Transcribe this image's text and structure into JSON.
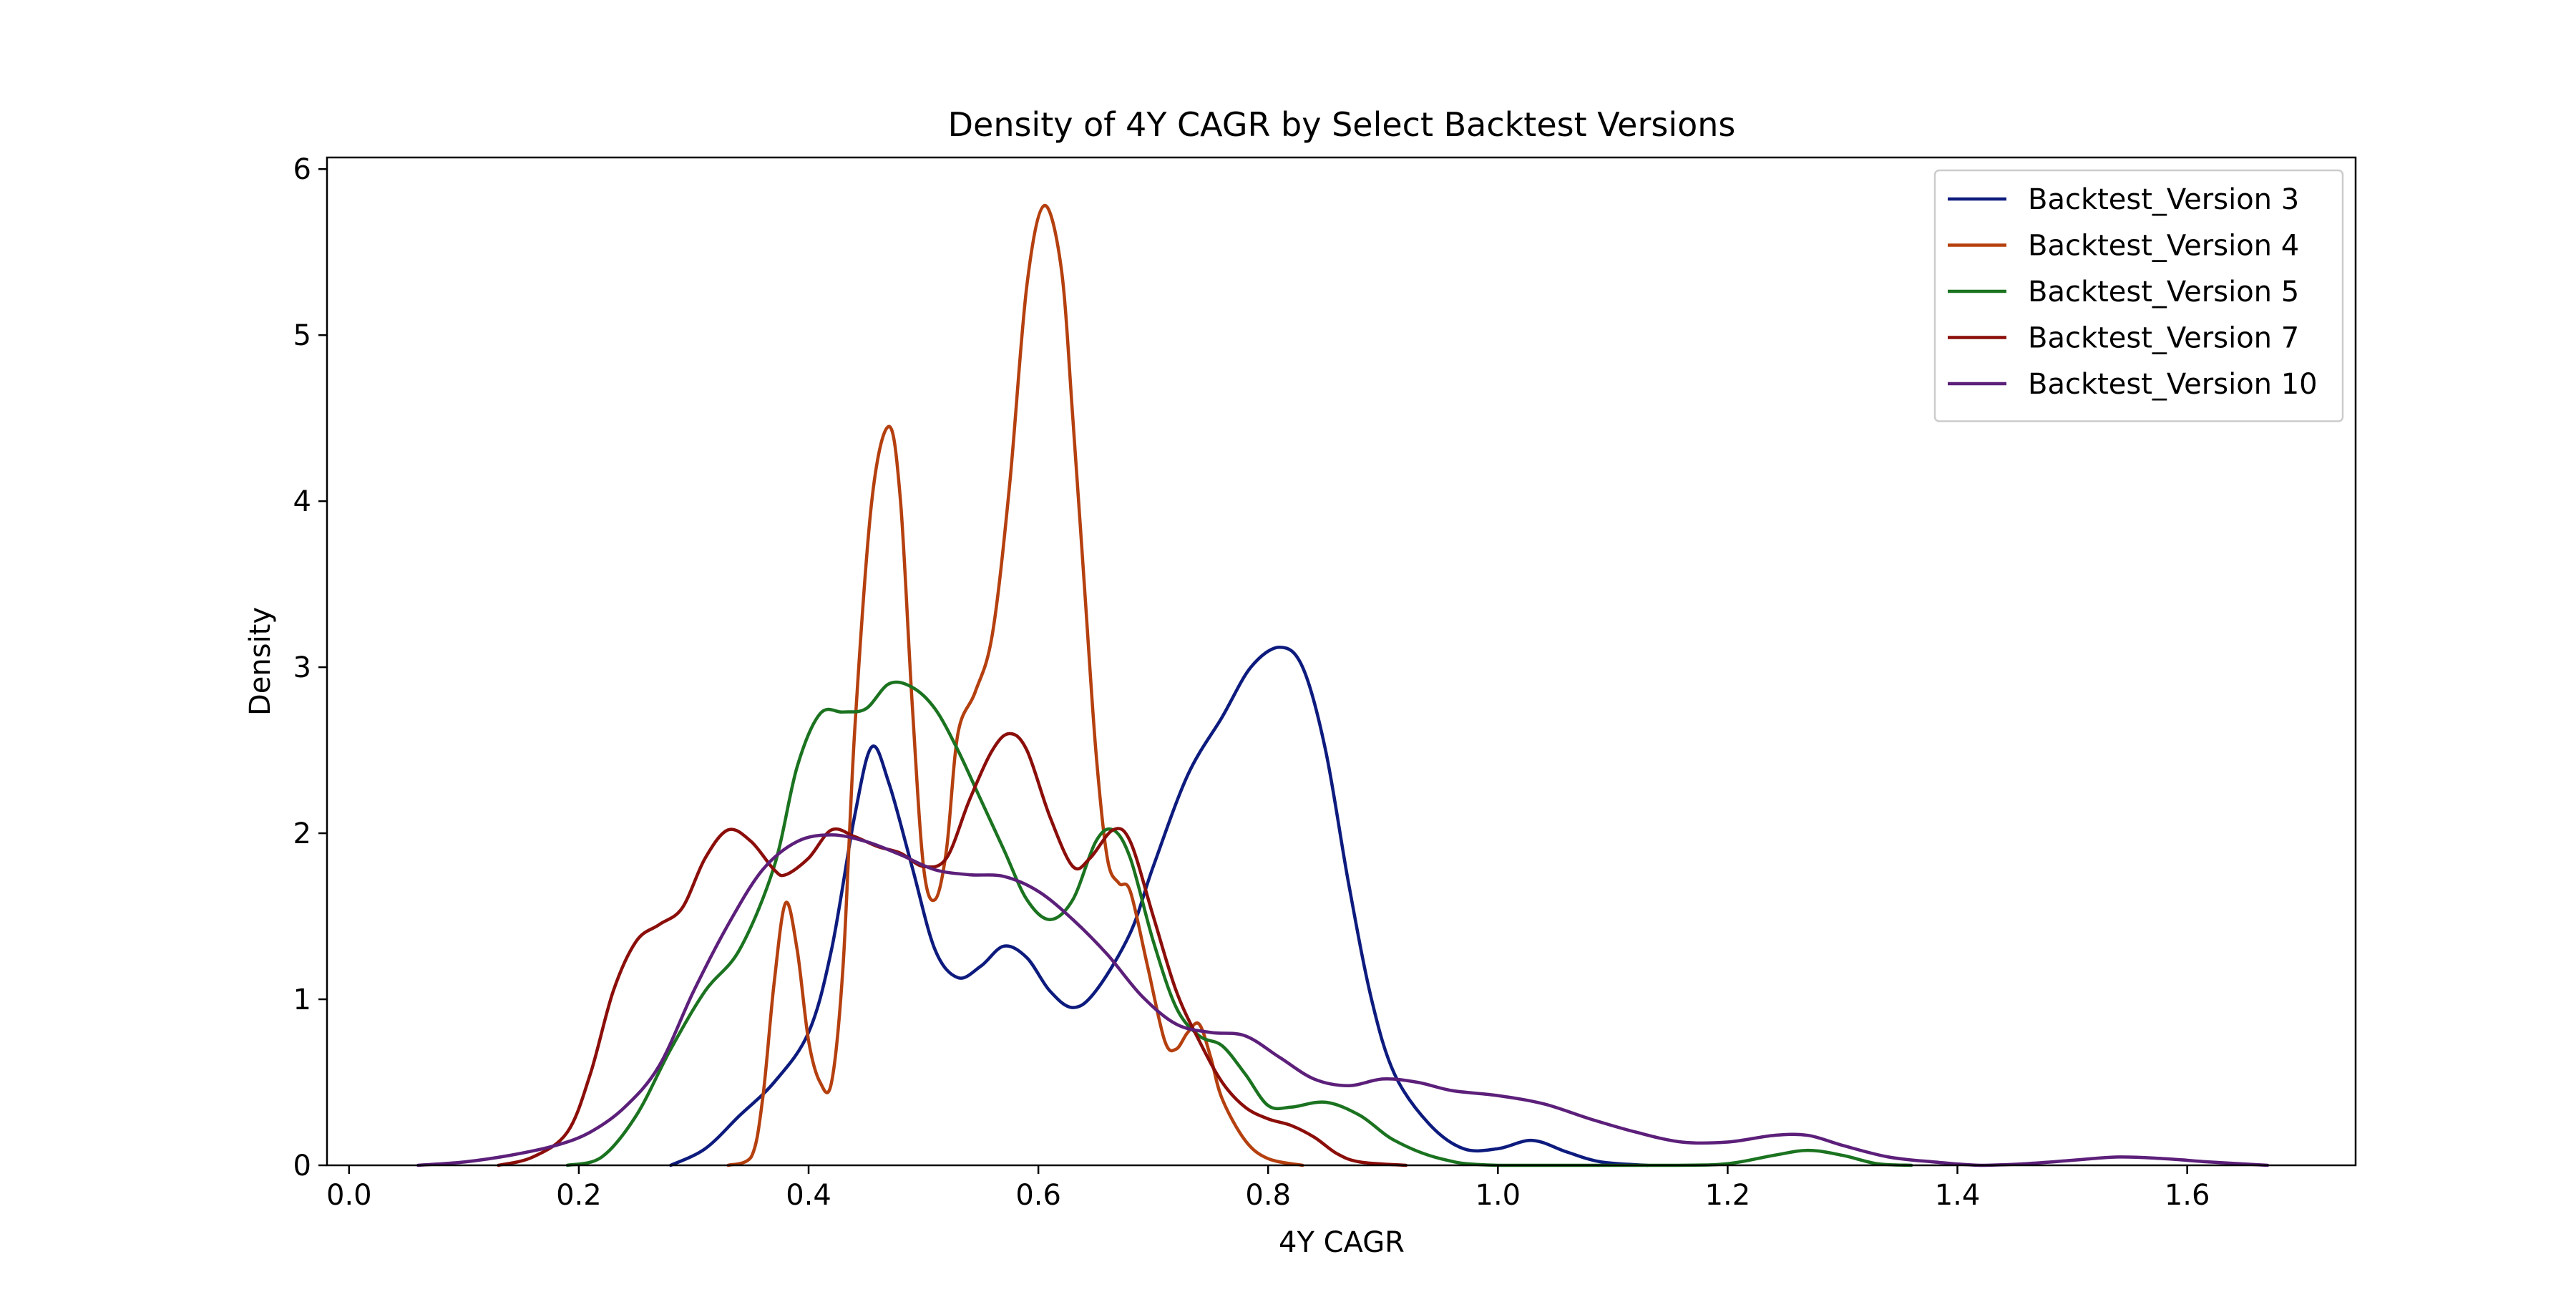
{
  "chart_data": {
    "type": "line",
    "title": "Density of 4Y CAGR by Select Backtest Versions",
    "xlabel": "4Y CAGR",
    "ylabel": "Density",
    "xlim": [
      -0.0192,
      1.7466
    ],
    "ylim": [
      0,
      6.07
    ],
    "xticks": [
      0.0,
      0.2,
      0.4,
      0.6,
      0.8,
      1.0,
      1.2,
      1.4,
      1.6
    ],
    "yticks": [
      0,
      1,
      2,
      3,
      4,
      5,
      6
    ],
    "xtick_labels": [
      "0.0",
      "0.2",
      "0.4",
      "0.6",
      "0.8",
      "1.0",
      "1.2",
      "1.4",
      "1.6"
    ],
    "ytick_labels": [
      "0",
      "1",
      "2",
      "3",
      "4",
      "5",
      "6"
    ],
    "grid": false,
    "legend_position": "top-right",
    "series": [
      {
        "name": "Backtest_Version 3",
        "color": "#0d1b7e",
        "points": [
          [
            0.28,
            0
          ],
          [
            0.31,
            0.1
          ],
          [
            0.34,
            0.3
          ],
          [
            0.37,
            0.5
          ],
          [
            0.4,
            0.8
          ],
          [
            0.42,
            1.3
          ],
          [
            0.44,
            2.1
          ],
          [
            0.455,
            2.52
          ],
          [
            0.47,
            2.3
          ],
          [
            0.49,
            1.8
          ],
          [
            0.51,
            1.3
          ],
          [
            0.53,
            1.13
          ],
          [
            0.55,
            1.2
          ],
          [
            0.57,
            1.32
          ],
          [
            0.59,
            1.25
          ],
          [
            0.61,
            1.05
          ],
          [
            0.63,
            0.95
          ],
          [
            0.65,
            1.05
          ],
          [
            0.68,
            1.4
          ],
          [
            0.7,
            1.8
          ],
          [
            0.73,
            2.35
          ],
          [
            0.76,
            2.7
          ],
          [
            0.785,
            3.0
          ],
          [
            0.81,
            3.12
          ],
          [
            0.83,
            3.0
          ],
          [
            0.85,
            2.5
          ],
          [
            0.87,
            1.7
          ],
          [
            0.89,
            1.0
          ],
          [
            0.91,
            0.55
          ],
          [
            0.94,
            0.25
          ],
          [
            0.97,
            0.1
          ],
          [
            1.0,
            0.1
          ],
          [
            1.03,
            0.15
          ],
          [
            1.06,
            0.08
          ],
          [
            1.09,
            0.02
          ],
          [
            1.13,
            0
          ]
        ]
      },
      {
        "name": "Backtest_Version 4",
        "color": "#b5400f",
        "points": [
          [
            0.33,
            0
          ],
          [
            0.35,
            0.05
          ],
          [
            0.36,
            0.4
          ],
          [
            0.37,
            1.1
          ],
          [
            0.38,
            1.58
          ],
          [
            0.39,
            1.3
          ],
          [
            0.4,
            0.75
          ],
          [
            0.41,
            0.5
          ],
          [
            0.42,
            0.5
          ],
          [
            0.43,
            1.2
          ],
          [
            0.44,
            2.6
          ],
          [
            0.455,
            4.0
          ],
          [
            0.47,
            4.45
          ],
          [
            0.48,
            4.0
          ],
          [
            0.49,
            2.8
          ],
          [
            0.5,
            1.8
          ],
          [
            0.51,
            1.6
          ],
          [
            0.52,
            1.9
          ],
          [
            0.53,
            2.6
          ],
          [
            0.545,
            2.85
          ],
          [
            0.56,
            3.2
          ],
          [
            0.575,
            4.1
          ],
          [
            0.59,
            5.3
          ],
          [
            0.605,
            5.78
          ],
          [
            0.62,
            5.4
          ],
          [
            0.63,
            4.5
          ],
          [
            0.64,
            3.5
          ],
          [
            0.65,
            2.5
          ],
          [
            0.66,
            1.85
          ],
          [
            0.67,
            1.7
          ],
          [
            0.68,
            1.65
          ],
          [
            0.695,
            1.2
          ],
          [
            0.71,
            0.75
          ],
          [
            0.72,
            0.7
          ],
          [
            0.73,
            0.8
          ],
          [
            0.74,
            0.85
          ],
          [
            0.75,
            0.65
          ],
          [
            0.76,
            0.4
          ],
          [
            0.78,
            0.15
          ],
          [
            0.8,
            0.04
          ],
          [
            0.83,
            0
          ]
        ]
      },
      {
        "name": "Backtest_Version 5",
        "color": "#1b7320",
        "points": [
          [
            0.19,
            0
          ],
          [
            0.22,
            0.05
          ],
          [
            0.25,
            0.3
          ],
          [
            0.28,
            0.7
          ],
          [
            0.31,
            1.05
          ],
          [
            0.34,
            1.3
          ],
          [
            0.37,
            1.8
          ],
          [
            0.39,
            2.4
          ],
          [
            0.41,
            2.72
          ],
          [
            0.43,
            2.73
          ],
          [
            0.45,
            2.75
          ],
          [
            0.47,
            2.9
          ],
          [
            0.49,
            2.88
          ],
          [
            0.51,
            2.75
          ],
          [
            0.53,
            2.5
          ],
          [
            0.55,
            2.2
          ],
          [
            0.57,
            1.9
          ],
          [
            0.59,
            1.6
          ],
          [
            0.61,
            1.48
          ],
          [
            0.63,
            1.6
          ],
          [
            0.65,
            1.95
          ],
          [
            0.665,
            2.02
          ],
          [
            0.68,
            1.85
          ],
          [
            0.7,
            1.35
          ],
          [
            0.72,
            0.95
          ],
          [
            0.74,
            0.78
          ],
          [
            0.76,
            0.72
          ],
          [
            0.78,
            0.55
          ],
          [
            0.8,
            0.36
          ],
          [
            0.82,
            0.35
          ],
          [
            0.85,
            0.38
          ],
          [
            0.88,
            0.3
          ],
          [
            0.91,
            0.15
          ],
          [
            0.95,
            0.04
          ],
          [
            1.0,
            0
          ],
          [
            1.15,
            0
          ],
          [
            1.2,
            0.01
          ],
          [
            1.24,
            0.06
          ],
          [
            1.27,
            0.09
          ],
          [
            1.3,
            0.06
          ],
          [
            1.33,
            0.01
          ],
          [
            1.36,
            0
          ]
        ]
      },
      {
        "name": "Backtest_Version 7",
        "color": "#8b0e0a",
        "points": [
          [
            0.13,
            0
          ],
          [
            0.16,
            0.05
          ],
          [
            0.19,
            0.2
          ],
          [
            0.21,
            0.55
          ],
          [
            0.23,
            1.05
          ],
          [
            0.25,
            1.35
          ],
          [
            0.27,
            1.45
          ],
          [
            0.29,
            1.55
          ],
          [
            0.31,
            1.85
          ],
          [
            0.33,
            2.02
          ],
          [
            0.35,
            1.95
          ],
          [
            0.37,
            1.78
          ],
          [
            0.38,
            1.75
          ],
          [
            0.4,
            1.85
          ],
          [
            0.42,
            2.02
          ],
          [
            0.44,
            1.98
          ],
          [
            0.46,
            1.92
          ],
          [
            0.48,
            1.88
          ],
          [
            0.5,
            1.8
          ],
          [
            0.52,
            1.85
          ],
          [
            0.54,
            2.2
          ],
          [
            0.56,
            2.5
          ],
          [
            0.575,
            2.6
          ],
          [
            0.59,
            2.5
          ],
          [
            0.61,
            2.1
          ],
          [
            0.63,
            1.8
          ],
          [
            0.645,
            1.85
          ],
          [
            0.665,
            2.02
          ],
          [
            0.68,
            1.95
          ],
          [
            0.7,
            1.5
          ],
          [
            0.72,
            1.05
          ],
          [
            0.74,
            0.75
          ],
          [
            0.76,
            0.5
          ],
          [
            0.78,
            0.35
          ],
          [
            0.8,
            0.28
          ],
          [
            0.82,
            0.24
          ],
          [
            0.84,
            0.17
          ],
          [
            0.86,
            0.07
          ],
          [
            0.88,
            0.02
          ],
          [
            0.92,
            0
          ]
        ]
      },
      {
        "name": "Backtest_Version 10",
        "color": "#5c1f7a",
        "points": [
          [
            0.06,
            0
          ],
          [
            0.1,
            0.02
          ],
          [
            0.14,
            0.06
          ],
          [
            0.18,
            0.12
          ],
          [
            0.21,
            0.2
          ],
          [
            0.24,
            0.35
          ],
          [
            0.27,
            0.6
          ],
          [
            0.3,
            1.05
          ],
          [
            0.33,
            1.45
          ],
          [
            0.36,
            1.78
          ],
          [
            0.39,
            1.95
          ],
          [
            0.42,
            1.99
          ],
          [
            0.45,
            1.95
          ],
          [
            0.48,
            1.87
          ],
          [
            0.51,
            1.78
          ],
          [
            0.54,
            1.75
          ],
          [
            0.57,
            1.74
          ],
          [
            0.6,
            1.65
          ],
          [
            0.63,
            1.48
          ],
          [
            0.66,
            1.27
          ],
          [
            0.69,
            1.02
          ],
          [
            0.72,
            0.85
          ],
          [
            0.75,
            0.8
          ],
          [
            0.78,
            0.78
          ],
          [
            0.81,
            0.65
          ],
          [
            0.84,
            0.52
          ],
          [
            0.87,
            0.48
          ],
          [
            0.9,
            0.52
          ],
          [
            0.93,
            0.5
          ],
          [
            0.96,
            0.45
          ],
          [
            1.0,
            0.42
          ],
          [
            1.04,
            0.37
          ],
          [
            1.08,
            0.28
          ],
          [
            1.12,
            0.2
          ],
          [
            1.16,
            0.14
          ],
          [
            1.2,
            0.14
          ],
          [
            1.24,
            0.18
          ],
          [
            1.27,
            0.18
          ],
          [
            1.3,
            0.12
          ],
          [
            1.34,
            0.05
          ],
          [
            1.38,
            0.02
          ],
          [
            1.42,
            0
          ],
          [
            1.46,
            0.01
          ],
          [
            1.5,
            0.03
          ],
          [
            1.54,
            0.05
          ],
          [
            1.58,
            0.04
          ],
          [
            1.62,
            0.02
          ],
          [
            1.67,
            0
          ]
        ]
      }
    ]
  }
}
